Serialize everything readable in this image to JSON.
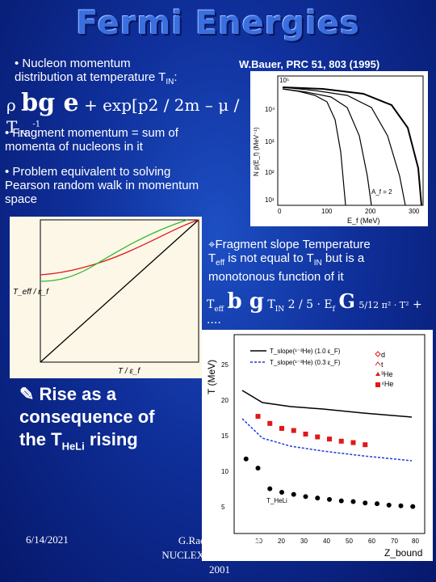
{
  "title": "Fermi Energies",
  "bullet1": {
    "line1": "• Nucleon momentum",
    "line2": "distribution at temperature T",
    "sub": "IN",
    "tail": ":"
  },
  "citation": "W.Bauer, PRC 51, 803 (1995)",
  "eq1": {
    "rho": "ρ",
    "mid": "+ exp[",
    "p": "p",
    "rest": "2 / 2m – μ",
    "div": "/ T",
    "sub": "IN",
    "exp": "-1"
  },
  "bullet2": {
    "line1": "• Fragment momentum = sum of",
    "line2": "momenta of nucleons in it"
  },
  "bullet3": {
    "line1": "• Problem equivalent to solving",
    "line2": "Pearson random walk in momentum",
    "line3": "space"
  },
  "bullet4": {
    "line1": "Fragment slope Temperature",
    "line2a": "T",
    "line2sub": "eff",
    "line2b": " is not equal to T",
    "line2sub2": "IN",
    "line2c": " but is a",
    "line3": "monotonous function of it"
  },
  "eq2": {
    "teff": "T",
    "teffsub": "eff",
    "tin": "T",
    "tinsub": "IN",
    "frac": "2 / 5 · E",
    "fsub": "f",
    "frac2": "5/12 π² · T²",
    "dots": "+ ...."
  },
  "bullet5": {
    "line1": "Rise as a",
    "line2": "consequence of",
    "line3": "the T",
    "sub": "HeLi",
    "tail": " rising"
  },
  "footer": {
    "date": "6/14/2021",
    "center1": "G.Raciti, I-Meeting",
    "center2": "NUCLEX Firenze, October",
    "center3": "2001"
  },
  "plot1": {
    "ylabel": "N p(E_f) (MeV⁻¹)",
    "xlabel": "E_f (MeV)",
    "yticks": [
      "10⁵",
      "10⁴",
      "10³",
      "10²",
      "10¹"
    ],
    "xticks": [
      "0",
      "100",
      "200",
      "300"
    ],
    "legend": "A_f = 2"
  },
  "plot2": {
    "ylabel": "T_eff / ε_f",
    "xlabel": "T / ε_f"
  },
  "plot3": {
    "ylabel": "T (MeV)",
    "xlabel": "Z_bound",
    "yticks": [
      "25",
      "20",
      "15",
      "10",
      "5"
    ],
    "xticks": [
      "10",
      "20",
      "30",
      "40",
      "50",
      "60",
      "70",
      "80"
    ],
    "legend1": "T_slope(¹⁻³He) (1.0 ε_F)",
    "legend2": "T_slope(¹⁻³He) (0.3 ε_F)",
    "series_labels": [
      "d",
      "t",
      "³He",
      "⁴He"
    ],
    "label_heli": "T_HeLi"
  },
  "chart_data": [
    {
      "type": "line",
      "title": "",
      "xlabel": "E_f (MeV)",
      "ylabel": "N p(E_f) (MeV⁻¹)",
      "xlim": [
        0,
        300
      ],
      "ylim": [
        10,
        100000
      ],
      "scale": "log-y"
    },
    {
      "type": "line",
      "title": "",
      "xlabel": "T / ε_f",
      "ylabel": "T_eff / ε_f",
      "series": [
        {
          "name": "",
          "color": "#000000"
        },
        {
          "name": "",
          "color": "#e01818"
        },
        {
          "name": "",
          "color": "#2fb82f"
        }
      ]
    },
    {
      "type": "scatter",
      "title": "",
      "xlabel": "Z_bound",
      "ylabel": "T (MeV)",
      "xlim": [
        0,
        80
      ],
      "ylim": [
        0,
        28
      ],
      "series": [
        {
          "name": "T_HeLi",
          "x": [
            5,
            10,
            15,
            20,
            25,
            30,
            35,
            40,
            45,
            50,
            55,
            60,
            65,
            70,
            75
          ],
          "y": [
            10.5,
            9.2,
            6.3,
            5.8,
            5.5,
            5.2,
            5.0,
            4.8,
            4.6,
            4.5,
            4.3,
            4.2,
            4.0,
            3.9,
            3.8
          ]
        },
        {
          "name": "⁴He",
          "x": [
            10,
            15,
            20,
            25,
            30,
            35,
            40,
            45,
            50,
            55
          ],
          "y": [
            16.5,
            15.5,
            14.8,
            14.5,
            14.0,
            13.6,
            13.3,
            13.0,
            12.8,
            12.5
          ]
        }
      ]
    }
  ]
}
